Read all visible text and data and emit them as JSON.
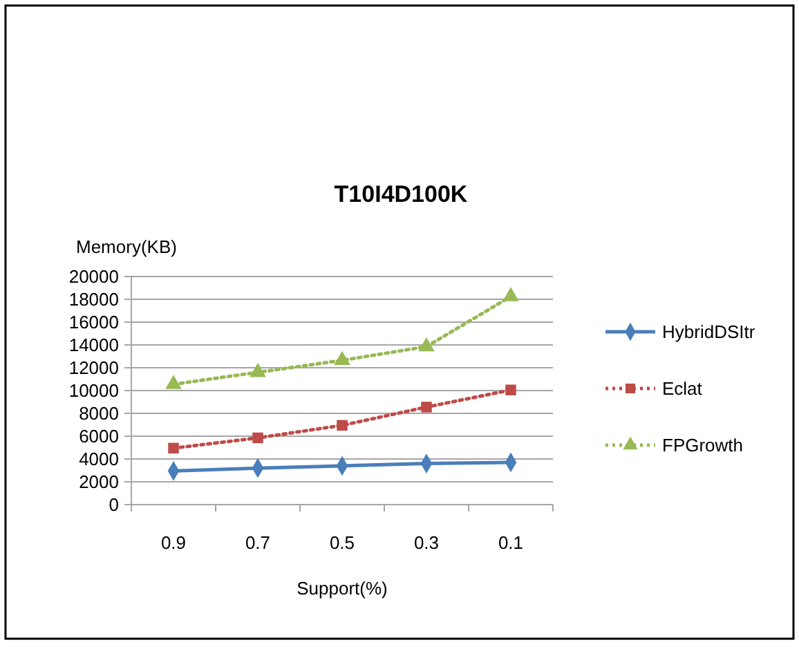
{
  "chart_data": {
    "type": "line",
    "title": "T10I4D100K",
    "ylabel": "Memory(KB)",
    "xlabel": "Support(%)",
    "categories": [
      "0.9",
      "0.7",
      "0.5",
      "0.3",
      "0.1"
    ],
    "series": [
      {
        "name": "HybridDSItr",
        "color": "#4a7ebb",
        "values": [
          2950,
          3200,
          3400,
          3600,
          3700
        ],
        "marker": "diamond",
        "line_style": "solid"
      },
      {
        "name": "Eclat",
        "color": "#be4b48",
        "values": [
          4950,
          5850,
          6950,
          8550,
          10050
        ],
        "marker": "square",
        "line_style": "dotted"
      },
      {
        "name": "FPGrowth",
        "color": "#98b954",
        "values": [
          10550,
          11600,
          12650,
          13850,
          18250
        ],
        "marker": "triangle",
        "line_style": "dotted"
      }
    ],
    "ylim": [
      0,
      20000
    ],
    "yticks": [
      0,
      2000,
      4000,
      6000,
      8000,
      10000,
      12000,
      14000,
      16000,
      18000,
      20000
    ],
    "grid": "y",
    "legend": "right"
  }
}
